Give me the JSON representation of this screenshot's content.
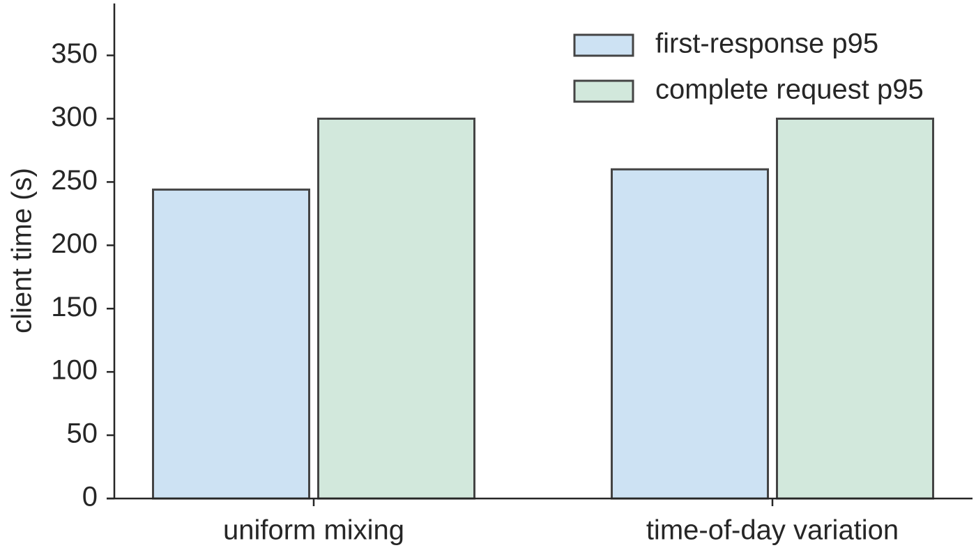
{
  "chart_data": {
    "type": "bar",
    "y_label": "client time (s)",
    "categories": [
      "uniform mixing",
      "time-of-day variation"
    ],
    "series": [
      {
        "name": "first-response p95",
        "color": "#cde2f3",
        "values": [
          244,
          260
        ]
      },
      {
        "name": "complete request p95",
        "color": "#d2e8dc",
        "values": [
          300,
          300
        ]
      }
    ],
    "ylim": [
      0,
      391
    ],
    "yticks": [
      0,
      50,
      100,
      150,
      200,
      250,
      300,
      350
    ],
    "grid": false,
    "legend": "upper right",
    "edge_color": "#444444"
  }
}
